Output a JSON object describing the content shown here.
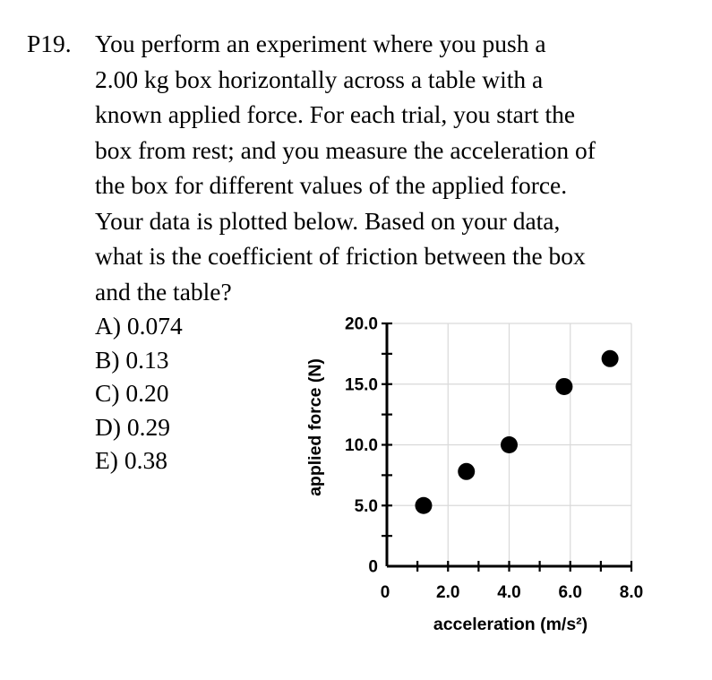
{
  "problem": {
    "number": "P19.",
    "lines": [
      "You perform an experiment where you push a",
      "2.00 kg box horizontally across a table with a",
      "known applied force.  For each trial, you start the",
      "box from rest; and you measure the acceleration of",
      "the box for different values of the applied force.",
      "Your data is plotted below.  Based on your data,",
      "what is the coefficient of friction between the box",
      "and the table?"
    ],
    "choices": [
      "A)  0.074",
      "B)  0.13",
      "C)  0.20",
      "D)  0.29",
      "E)  0.38"
    ]
  },
  "chart_data": {
    "type": "scatter",
    "title": "",
    "xlabel": "acceleration (m/s²)",
    "ylabel": "applied force (N)",
    "xlim": [
      0,
      8
    ],
    "ylim": [
      0,
      20
    ],
    "grid": true,
    "x_ticks": [
      "0",
      "2.0",
      "4.0",
      "6.0",
      "8.0"
    ],
    "y_ticks": [
      "0",
      "5.0",
      "10.0",
      "15.0",
      "20.0"
    ],
    "x_tick_values": [
      0,
      2,
      4,
      6,
      8
    ],
    "y_tick_values": [
      0,
      5,
      10,
      15,
      20
    ],
    "x_minor_step": 1,
    "y_minor_step": 2.5,
    "points": [
      {
        "x": 1.2,
        "y": 5.0
      },
      {
        "x": 2.6,
        "y": 7.8
      },
      {
        "x": 4.0,
        "y": 10.0
      },
      {
        "x": 5.8,
        "y": 14.8
      },
      {
        "x": 7.3,
        "y": 17.1
      }
    ],
    "marker_color": "#000000"
  }
}
